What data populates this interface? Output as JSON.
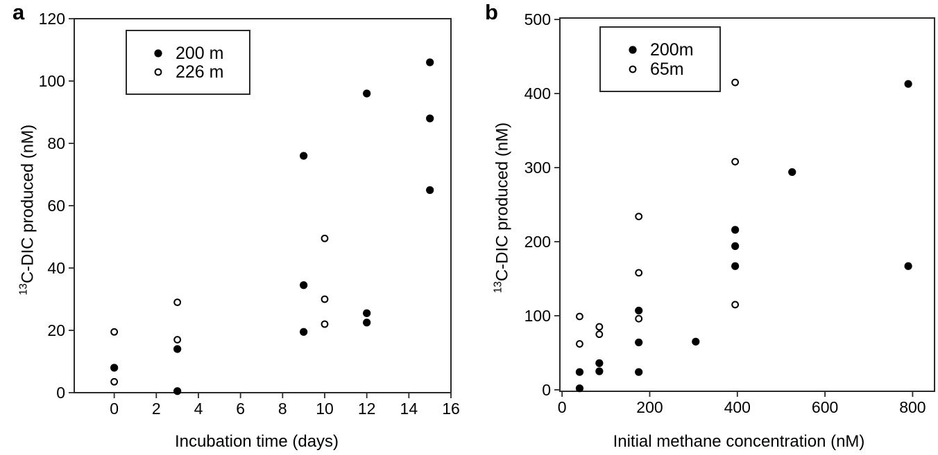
{
  "figure": {
    "background_color": "#ffffff",
    "marker_color": "#000000",
    "axis_color": "#2a2a2a"
  },
  "chart_data": [
    {
      "type": "scatter",
      "panel_label": "a",
      "xlabel": "Incubation time (days)",
      "ylabel": "13C-DIC produced (nM)",
      "ylabel_sup": "13",
      "ylabel_rest": "C-DIC produced (nM)",
      "xlim": [
        -1.9,
        16
      ],
      "ylim": [
        0,
        120
      ],
      "xticks": [
        0,
        2,
        4,
        6,
        8,
        10,
        12,
        14,
        16
      ],
      "yticks": [
        0,
        20,
        40,
        60,
        80,
        100,
        120
      ],
      "grid": false,
      "legend_position": "top-left-inside",
      "series": [
        {
          "name": "200 m",
          "marker": "filled-circle",
          "points": [
            [
              0,
              8
            ],
            [
              3,
              0.5
            ],
            [
              3,
              14
            ],
            [
              9,
              19.5
            ],
            [
              9,
              34.5
            ],
            [
              9,
              76
            ],
            [
              12,
              22.5
            ],
            [
              12,
              25.5
            ],
            [
              12,
              96
            ],
            [
              15,
              65
            ],
            [
              15,
              88
            ],
            [
              15,
              106
            ]
          ]
        },
        {
          "name": "226 m",
          "marker": "open-circle",
          "points": [
            [
              0,
              3.5
            ],
            [
              0,
              19.5
            ],
            [
              3,
              17
            ],
            [
              3,
              29
            ],
            [
              10,
              22
            ],
            [
              10,
              30
            ],
            [
              10,
              49.5
            ]
          ]
        }
      ]
    },
    {
      "type": "scatter",
      "panel_label": "b",
      "xlabel": "Initial methane concentration (nM)",
      "ylabel": "13C-DIC produced (nM)",
      "ylabel_sup": "13",
      "ylabel_rest": "C-DIC produced (nM)",
      "xlim": [
        -5,
        850
      ],
      "ylim": [
        -2,
        502
      ],
      "xticks": [
        0,
        200,
        400,
        600,
        800
      ],
      "yticks": [
        0,
        100,
        200,
        300,
        400,
        500
      ],
      "grid": false,
      "legend_position": "top-left-inside",
      "series": [
        {
          "name": "200m",
          "marker": "filled-circle",
          "points": [
            [
              40,
              2
            ],
            [
              40,
              24
            ],
            [
              85,
              25
            ],
            [
              85,
              36
            ],
            [
              175,
              24
            ],
            [
              175,
              64
            ],
            [
              175,
              107
            ],
            [
              305,
              65
            ],
            [
              395,
              167
            ],
            [
              395,
              194
            ],
            [
              395,
              216
            ],
            [
              525,
              294
            ],
            [
              790,
              167
            ],
            [
              790,
              413
            ]
          ]
        },
        {
          "name": "65m",
          "marker": "open-circle",
          "points": [
            [
              40,
              62
            ],
            [
              40,
              99
            ],
            [
              85,
              75
            ],
            [
              85,
              85
            ],
            [
              175,
              96
            ],
            [
              175,
              158
            ],
            [
              175,
              234
            ],
            [
              395,
              115
            ],
            [
              395,
              308
            ],
            [
              395,
              415
            ]
          ]
        }
      ]
    }
  ]
}
